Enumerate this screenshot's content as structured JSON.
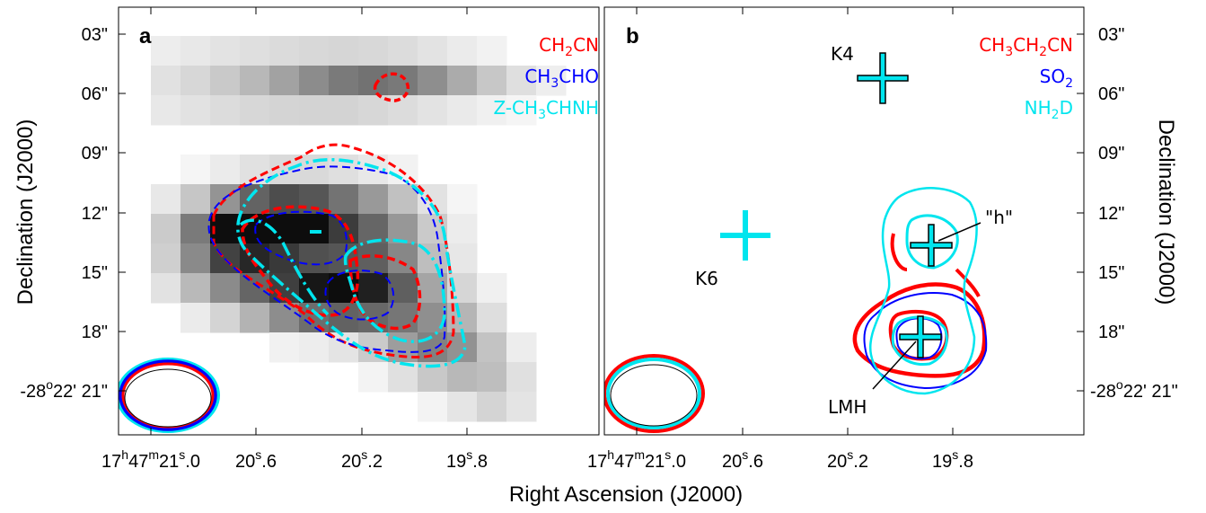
{
  "chart_data": {
    "type": "heatmap",
    "xlabel": "Right Ascension (J2000)",
    "ylabel_left": "Declination (J2000)",
    "ylabel_right": "Declination (J2000)",
    "y_ticks": [
      "03\"",
      "06\"",
      "09\"",
      "12\"",
      "15\"",
      "18\""
    ],
    "y_tick_last": {
      "base": "-28",
      "sup": "o",
      "rest": "22' 21\""
    },
    "x_ticks": [
      {
        "base": "17",
        "h": "h",
        "m_val": "47",
        "m": "m",
        "s_val": "21",
        "s": "s",
        "frac": ".0"
      },
      {
        "val": "20",
        "s": "s",
        "frac": ".6"
      },
      {
        "val": "20",
        "s": "s",
        "frac": ".2"
      },
      {
        "val": "19",
        "s": "s",
        "frac": ".8"
      }
    ],
    "panels": [
      {
        "label": "a",
        "legend": [
          {
            "parts": [
              "CH",
              "2",
              "CN"
            ],
            "color": "#ff0000"
          },
          {
            "parts": [
              "CH",
              "3",
              "CHO"
            ],
            "color": "#0000ff"
          },
          {
            "parts": [
              "Z-CH",
              "3",
              "CHNH"
            ],
            "color": "#00e5ee"
          }
        ]
      },
      {
        "label": "b",
        "legend": [
          {
            "parts": [
              "CH",
              "3",
              "CH",
              "2",
              "CN"
            ],
            "color": "#ff0000"
          },
          {
            "parts": [
              "SO",
              "2",
              ""
            ],
            "color": "#0000ff"
          },
          {
            "parts": [
              "NH",
              "2",
              "D"
            ],
            "color": "#00e5ee"
          }
        ],
        "markers": [
          {
            "name": "K4",
            "label": "K4"
          },
          {
            "name": "K6",
            "label": "K6"
          },
          {
            "name": "h",
            "label": "\"h\""
          },
          {
            "name": "LMH",
            "label": "LMH"
          }
        ]
      }
    ]
  }
}
